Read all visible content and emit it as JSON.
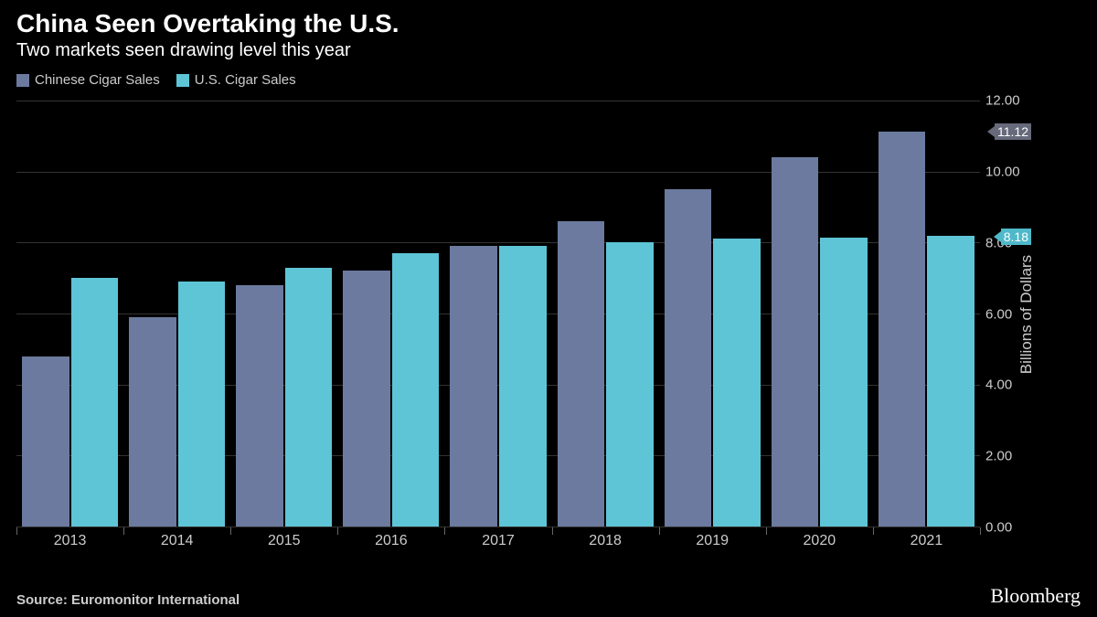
{
  "header": {
    "title": "China Seen Overtaking the U.S.",
    "subtitle": "Two markets seen drawing level this year"
  },
  "legend": {
    "items": [
      {
        "label": "Chinese Cigar Sales",
        "color": "#6b7a9e"
      },
      {
        "label": "U.S. Cigar Sales",
        "color": "#5ec5d6"
      }
    ]
  },
  "chart": {
    "type": "bar",
    "y_axis_title": "Billions of Dollars",
    "ymin": 0,
    "ymax": 12,
    "ytick_step": 2,
    "y_ticks": [
      "0.00",
      "2.00",
      "4.00",
      "6.00",
      "8.00",
      "10.00",
      "12.00"
    ],
    "categories": [
      "2013",
      "2014",
      "2015",
      "2016",
      "2017",
      "2018",
      "2019",
      "2020",
      "2021"
    ],
    "series": [
      {
        "name": "Chinese Cigar Sales",
        "color": "#6b7a9e",
        "values": [
          4.8,
          5.9,
          6.8,
          7.2,
          7.9,
          8.6,
          9.5,
          10.4,
          11.12
        ]
      },
      {
        "name": "U.S. Cigar Sales",
        "color": "#5ec5d6",
        "values": [
          7.0,
          6.9,
          7.3,
          7.7,
          7.9,
          8.0,
          8.1,
          8.15,
          8.18
        ]
      }
    ],
    "callouts": [
      {
        "value": "11.12",
        "y": 11.12,
        "color_class": "slate"
      },
      {
        "value": "8.18",
        "y": 8.18,
        "color_class": "teal"
      }
    ],
    "grid_color": "#333333",
    "background_color": "#000000",
    "label_color": "#cccccc",
    "label_fontsize": 15
  },
  "footer": {
    "source": "Source: Euromonitor International",
    "brand": "Bloomberg"
  }
}
